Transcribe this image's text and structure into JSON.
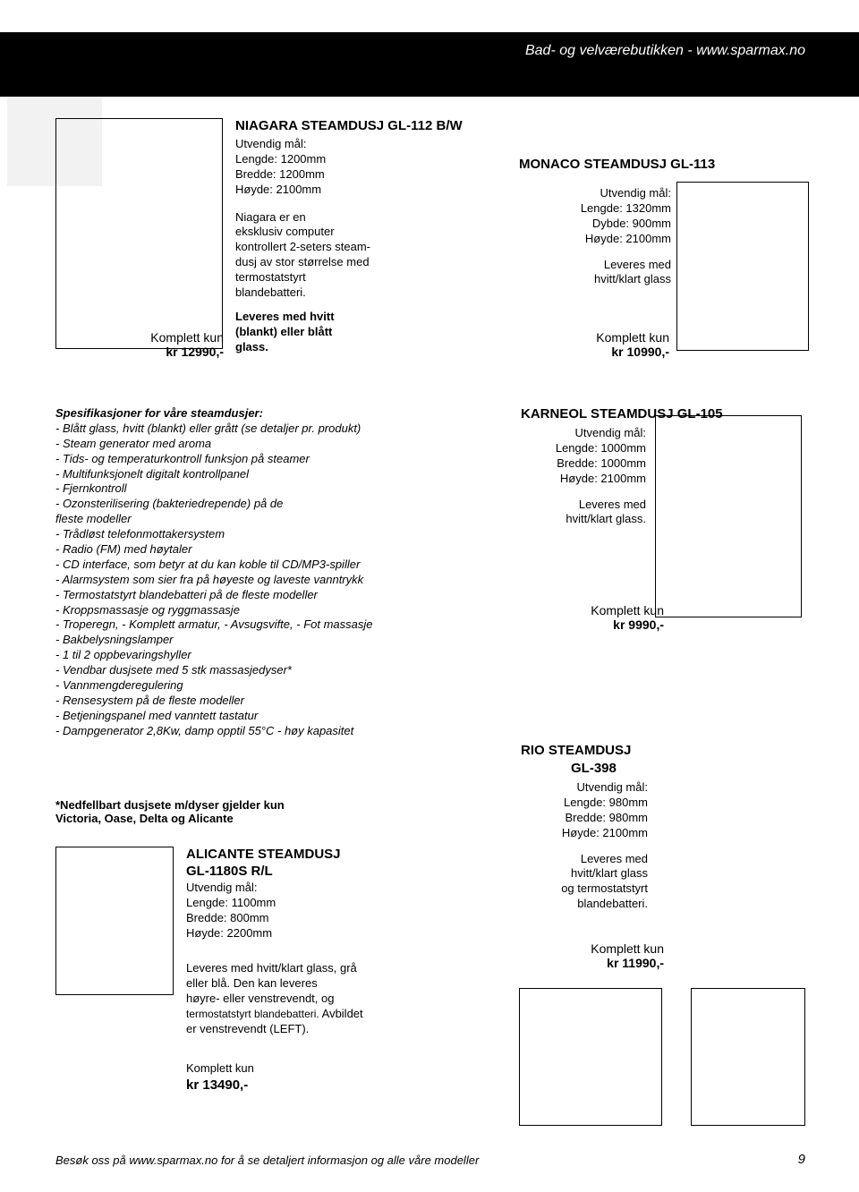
{
  "header": {
    "text": "Bad- og velværebutikken - www.sparmax.no"
  },
  "niagara": {
    "title": "NIAGARA STEAMDUSJ GL-112 B/W",
    "label_utvendig": "Utvendig mål:",
    "lengde": "Lengde: 1200mm",
    "bredde": "Bredde: 1200mm",
    "hoyde": "Høyde: 2100mm",
    "desc1": "Niagara er en",
    "desc2": "eksklusiv computer",
    "desc3": "kontrollert 2-seters steam-",
    "desc4": "dusj av stor størrelse med",
    "desc5": "termostatstyrt",
    "desc6": "blandebatteri.",
    "leveres1": "Leveres med hvitt",
    "leveres2": "(blankt) eller blått",
    "leveres3": "glass.",
    "price_label": "Komplett kun",
    "price": "kr 12990,-"
  },
  "monaco": {
    "title": "MONACO STEAMDUSJ GL-113",
    "label_utvendig": "Utvendig mål:",
    "lengde": "Lengde: 1320mm",
    "dybde": "Dybde: 900mm",
    "hoyde": "Høyde: 2100mm",
    "leveres1": "Leveres med",
    "leveres2": "hvitt/klart glass",
    "price_label": "Komplett kun",
    "price": "kr 10990,-"
  },
  "specs": {
    "title": "Spesifikasjoner for våre steamdusjer:",
    "items": [
      "- Blått glass, hvitt (blankt) eller grått (se detaljer pr. produkt)",
      "- Steam generator med aroma",
      "- Tids- og temperaturkontroll funksjon på steamer",
      "- Multifunksjonelt digitalt kontrollpanel",
      "- Fjernkontroll",
      "- Ozonsterilisering (bakteriedrepende) på de",
      "  fleste modeller",
      "- Trådløst telefonmottakersystem",
      "- Radio (FM) med høytaler",
      "- CD interface, som betyr at du kan koble til CD/MP3-spiller",
      "- Alarmsystem som sier fra på høyeste og laveste vanntrykk",
      "- Termostatstyrt blandebatteri på de fleste modeller",
      "- Kroppsmassasje og ryggmassasje",
      "- Troperegn, - Komplett armatur, - Avsugsvifte, - Fot massasje",
      "- Bakbelysningslamper",
      "- 1 til 2 oppbevaringshyller",
      "- Vendbar dusjsete med 5 stk massasjedyser*",
      "- Vannmengderegulering",
      "- Rensesystem på de fleste modeller",
      "- Betjeningspanel med vanntett tastatur",
      "- Dampgenerator 2,8Kw, damp opptil 55°C - høy kapasitet"
    ],
    "note1": "*Nedfellbart dusjsete m/dyser gjelder kun",
    "note2": "Victoria, Oase, Delta og Alicante"
  },
  "karneol": {
    "title": "KARNEOL STEAMDUSJ GL-105",
    "label_utvendig": "Utvendig mål:",
    "lengde": "Lengde: 1000mm",
    "bredde": "Bredde: 1000mm",
    "hoyde": "Høyde: 2100mm",
    "leveres1": "Leveres med",
    "leveres2": "hvitt/klart glass.",
    "price_label": "Komplett kun",
    "price": "kr 9990,-"
  },
  "rio": {
    "title": "RIO STEAMDUSJ",
    "model": "GL-398",
    "label_utvendig": "Utvendig mål:",
    "lengde": "Lengde: 980mm",
    "bredde": "Bredde: 980mm",
    "hoyde": "Høyde: 2100mm",
    "leveres1": "Leveres med",
    "leveres2": "hvitt/klart glass",
    "leveres3": "og termostatstyrt",
    "leveres4": "blandebatteri.",
    "price_label": "Komplett kun",
    "price": "kr 11990,-"
  },
  "alicante": {
    "title": "ALICANTE STEAMDUSJ",
    "model": "GL-1180S R/L",
    "label_utvendig": "Utvendig mål:",
    "lengde": "Lengde: 1100mm",
    "bredde": "Bredde: 800mm",
    "hoyde": "Høyde: 2200mm",
    "desc1": "Leveres med hvitt/klart glass, grå",
    "desc2": "eller blå. Den kan leveres",
    "desc3": "høyre- eller venstrevendt, og",
    "desc4_a": "termostatstyrt blandebatteri.",
    "desc4_b": " Avbildet",
    "desc5": "er venstrevendt (LEFT).",
    "price_label": "Komplett kun",
    "price": "kr 13490,-"
  },
  "footer": {
    "text": "Besøk oss på www.sparmax.no for å se detaljert informasjon og alle våre modeller",
    "page": "9"
  }
}
